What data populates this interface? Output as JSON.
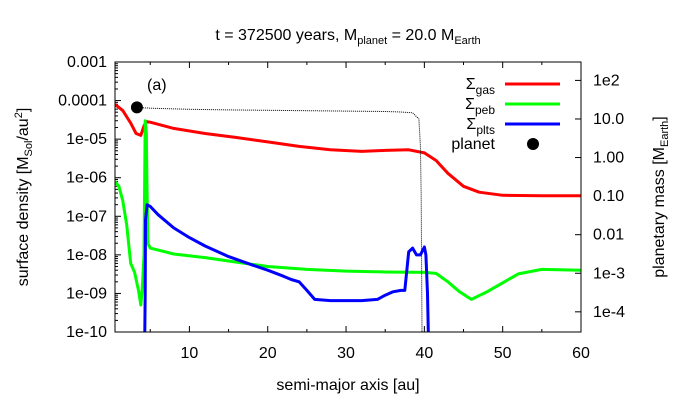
{
  "chart_data": {
    "type": "line",
    "title": "t = 372500 years, M_planet = 20.0 M_Earth",
    "title_parts": {
      "prefix": "t = 372500 years, M",
      "sub1": "planet",
      "mid": " = 20.0 M",
      "sub2": "Earth"
    },
    "panel_label": "(a)",
    "xlabel": "semi-major axis [au]",
    "ylabel_left": "surface density [M_Sol/au^2]",
    "ylabel_left_parts": {
      "a": "surface density [M",
      "sub": "Sol",
      "b": "/au",
      "sup": "2",
      "c": "]"
    },
    "ylabel_right": "planetary mass [M_Earth]",
    "ylabel_right_parts": {
      "a": "planetary mass [M",
      "sub": "Earth",
      "b": "]"
    },
    "xlim": [
      0.5,
      60
    ],
    "ylim_left": [
      1e-10,
      0.001
    ],
    "yscale_left": "log",
    "ylim_right": [
      3e-05,
      300
    ],
    "yscale_right": "log",
    "x_ticks": [
      10,
      20,
      30,
      40,
      50,
      60
    ],
    "x_tick_labels": [
      "10",
      "20",
      "30",
      "40",
      "50",
      "60"
    ],
    "y_left_ticks": [
      1e-10,
      1e-09,
      1e-08,
      1e-07,
      1e-06,
      1e-05,
      0.0001,
      0.001
    ],
    "y_left_tick_labels": [
      "1e-10",
      "1e-09",
      "1e-08",
      "1e-07",
      "1e-06",
      "1e-05",
      "0.0001",
      "0.001"
    ],
    "y_right_ticks": [
      0.0001,
      0.001,
      0.01,
      0.1,
      1,
      10,
      100
    ],
    "y_right_tick_labels": [
      "1e-4",
      "1e-3",
      "0.01",
      "0.10",
      "1.00",
      "10.0",
      "1e2"
    ],
    "legend_position": "top-right",
    "series": [
      {
        "name": "Σgas",
        "name_main": "Σ",
        "name_sub": "gas",
        "color": "#ff0000",
        "x": [
          0.5,
          1.5,
          2.5,
          3.2,
          3.8,
          4.2,
          4.5,
          5,
          8,
          12,
          16,
          20,
          24,
          28,
          32,
          35,
          38,
          40,
          41.5,
          43,
          45,
          47,
          50,
          55,
          60
        ],
        "y": [
          8e-05,
          5.5e-05,
          2.6e-05,
          1.4e-05,
          1.25e-05,
          2.2e-05,
          2.85e-05,
          2.75e-05,
          1.9e-05,
          1.4e-05,
          1.1e-05,
          8.5e-06,
          6.5e-06,
          5.3e-06,
          4.8e-06,
          5.1e-06,
          5.3e-06,
          4.4e-06,
          2.8e-06,
          1.3e-06,
          6e-07,
          4.2e-07,
          3.5e-07,
          3.4e-07,
          3.4e-07
        ]
      },
      {
        "name": "Σpeb",
        "name_main": "Σ",
        "name_sub": "peb",
        "color": "#00ff00",
        "x": [
          0.5,
          1.0,
          1.5,
          2.0,
          2.3,
          2.5,
          3.0,
          3.5,
          3.8,
          4.0,
          4.2,
          4.35,
          4.5,
          4.6,
          4.7,
          5.0,
          8,
          12,
          16,
          20,
          25,
          30,
          35,
          40,
          41.5,
          43,
          44.5,
          46,
          48,
          52,
          55,
          60
        ],
        "y": [
          8e-07,
          6e-07,
          2.5e-07,
          6e-08,
          1.5e-08,
          6e-09,
          3.5e-09,
          1.2e-09,
          5e-10,
          1.5e-09,
          1e-08,
          3e-05,
          1.5e-05,
          4e-07,
          2e-08,
          1.5e-08,
          1.05e-08,
          8.5e-09,
          6.5e-09,
          5e-09,
          4.2e-09,
          3.8e-09,
          3.6e-09,
          3.5e-09,
          3.3e-09,
          2e-09,
          1.1e-09,
          7e-10,
          1.1e-09,
          3.2e-09,
          4.2e-09,
          4e-09
        ]
      },
      {
        "name": "Σplts",
        "name_main": "Σ",
        "name_sub": "plts",
        "color": "#0000ff",
        "x": [
          4.3,
          4.35,
          4.4,
          4.6,
          5.0,
          6,
          8,
          10,
          12,
          15,
          18,
          20,
          22,
          23,
          24,
          25,
          26,
          28,
          32,
          34,
          35,
          36,
          37,
          37.5,
          38,
          38.5,
          39,
          39.5,
          40,
          40.2,
          40.4,
          40.5
        ],
        "y": [
          1e-10,
          1e-09,
          8e-08,
          2e-07,
          1.8e-07,
          1.1e-07,
          5e-08,
          2.8e-08,
          1.7e-08,
          9e-09,
          5.5e-09,
          4e-09,
          2.8e-09,
          2.3e-09,
          2e-09,
          1.2e-09,
          7e-10,
          6.5e-10,
          6.5e-10,
          7e-10,
          9e-10,
          1.1e-09,
          1.2e-09,
          1.2e-09,
          1.2e-08,
          1.5e-08,
          1e-08,
          1e-08,
          1.6e-08,
          1e-08,
          1e-09,
          1e-10
        ]
      },
      {
        "name": "planet",
        "color": "#000000",
        "axis": "right",
        "marker": "filled-circle",
        "x": [
          3.3
        ],
        "y": [
          20.0
        ]
      },
      {
        "name": "",
        "color": "#000000",
        "axis": "right",
        "style": "thin-dotted",
        "x": [
          3.3,
          5,
          10,
          15,
          20,
          25,
          30,
          35,
          37,
          38.5,
          39.3,
          39.5,
          39.6,
          39.7
        ],
        "y": [
          20.0,
          19.0,
          17.8,
          17.2,
          16.8,
          16.4,
          16.0,
          15.6,
          15.2,
          14.5,
          10.0,
          2.0,
          0.1,
          3e-05
        ]
      }
    ]
  }
}
